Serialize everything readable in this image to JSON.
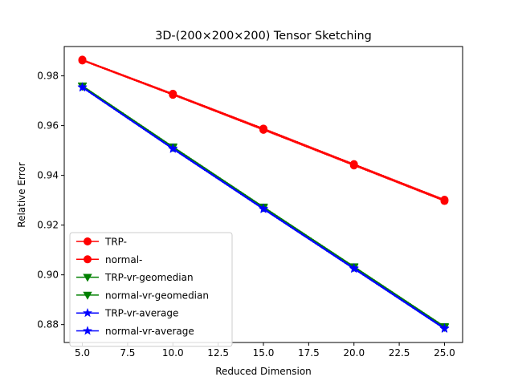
{
  "chart_data": {
    "type": "line",
    "title": "3D-(200×200×200) Tensor Sketching",
    "xlabel": "Reduced Dimension",
    "ylabel": "Relative Error",
    "xlim": [
      4.0,
      26.0
    ],
    "ylim": [
      0.8728,
      0.9918
    ],
    "xticks": [
      5.0,
      7.5,
      10.0,
      12.5,
      15.0,
      17.5,
      20.0,
      22.5,
      25.0
    ],
    "xtick_labels": [
      "5.0",
      "7.5",
      "10.0",
      "12.5",
      "15.0",
      "17.5",
      "20.0",
      "22.5",
      "25.0"
    ],
    "yticks": [
      0.88,
      0.9,
      0.92,
      0.94,
      0.96,
      0.98
    ],
    "ytick_labels": [
      "0.88",
      "0.90",
      "0.92",
      "0.94",
      "0.96",
      "0.98"
    ],
    "grid": false,
    "legend_position": "lower-left",
    "x": [
      5,
      10,
      15,
      20,
      25
    ],
    "series": [
      {
        "name": "TRP-",
        "color": "#ff0000",
        "marker": "circle",
        "values": [
          0.9865,
          0.9728,
          0.9588,
          0.9445,
          0.9302
        ],
        "errors": [
          0.0003,
          0.0003,
          0.0003,
          0.0003,
          0.0003
        ]
      },
      {
        "name": "normal-",
        "color": "#ff0000",
        "marker": "circle",
        "values": [
          0.9862,
          0.9724,
          0.9583,
          0.944,
          0.9297
        ],
        "errors": [
          0.0003,
          0.0003,
          0.0003,
          0.0003,
          0.0003
        ]
      },
      {
        "name": "TRP-vr-geomedian",
        "color": "#008000",
        "marker": "triangle-down",
        "values": [
          0.976,
          0.9515,
          0.9273,
          0.9033,
          0.8792
        ],
        "errors": [
          0.0003,
          0.0003,
          0.0003,
          0.0003,
          0.0003
        ]
      },
      {
        "name": "normal-vr-geomedian",
        "color": "#008000",
        "marker": "triangle-down",
        "values": [
          0.9758,
          0.9512,
          0.927,
          0.903,
          0.8789
        ],
        "errors": [
          0.0003,
          0.0003,
          0.0003,
          0.0003,
          0.0003
        ]
      },
      {
        "name": "TRP-vr-average",
        "color": "#0000ff",
        "marker": "star",
        "values": [
          0.9755,
          0.9509,
          0.9267,
          0.9027,
          0.8786
        ],
        "errors": [
          0.0003,
          0.0003,
          0.0003,
          0.0003,
          0.0003
        ]
      },
      {
        "name": "normal-vr-average",
        "color": "#0000ff",
        "marker": "star",
        "values": [
          0.9753,
          0.9506,
          0.9264,
          0.9024,
          0.8783
        ],
        "errors": [
          0.0003,
          0.0003,
          0.0003,
          0.0003,
          0.0003
        ]
      }
    ]
  }
}
